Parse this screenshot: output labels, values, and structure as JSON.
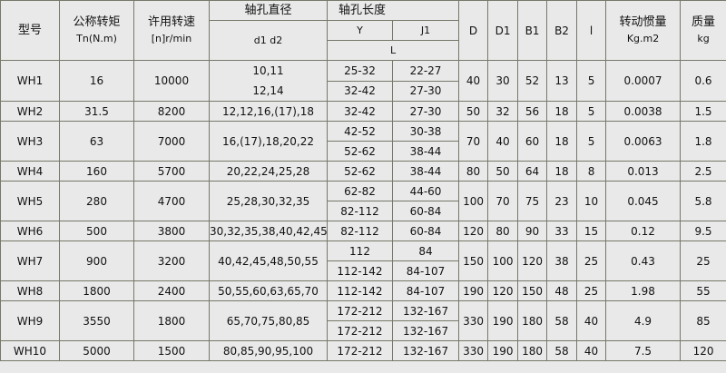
{
  "header": {
    "model": "型号",
    "torque": "公称转矩",
    "torque_unit": "Tn(N.m)",
    "speed": "许用转速",
    "speed_unit": "[n]r/min",
    "bore_diameter": "轴孔直径",
    "bore_diameter_sub": "d1 d2",
    "bore_length": "轴孔长度",
    "y": "Y",
    "j1": "J1",
    "l_len": "L",
    "d": "D",
    "d1": "D1",
    "b1": "B1",
    "b2": "B2",
    "l": "l",
    "inertia": "转动惯量",
    "inertia_unit": "Kg.m2",
    "mass": "质量",
    "mass_unit": "kg"
  },
  "rows": [
    {
      "model": "WH1",
      "torque": "16",
      "speed": "10000",
      "bore": [
        "10,11",
        "12,14"
      ],
      "lengths": [
        [
          "25-32",
          "22-27"
        ],
        [
          "32-42",
          "27-30"
        ]
      ],
      "D": "40",
      "D1": "30",
      "B1": "52",
      "B2": "13",
      "l": "5",
      "inertia": "0.0007",
      "mass": "0.6"
    },
    {
      "model": "WH2",
      "torque": "31.5",
      "speed": "8200",
      "bore": [
        "12,12,16,(17),18"
      ],
      "lengths": [
        [
          "32-42",
          "27-30"
        ]
      ],
      "D": "50",
      "D1": "32",
      "B1": "56",
      "B2": "18",
      "l": "5",
      "inertia": "0.0038",
      "mass": "1.5"
    },
    {
      "model": "WH3",
      "torque": "63",
      "speed": "7000",
      "bore": [
        "16,(17),18,20,22"
      ],
      "lengths": [
        [
          "42-52",
          "30-38"
        ],
        [
          "52-62",
          "38-44"
        ]
      ],
      "D": "70",
      "D1": "40",
      "B1": "60",
      "B2": "18",
      "l": "5",
      "inertia": "0.0063",
      "mass": "1.8"
    },
    {
      "model": "WH4",
      "torque": "160",
      "speed": "5700",
      "bore": [
        "20,22,24,25,28"
      ],
      "lengths": [
        [
          "52-62",
          "38-44"
        ]
      ],
      "D": "80",
      "D1": "50",
      "B1": "64",
      "B2": "18",
      "l": "8",
      "inertia": "0.013",
      "mass": "2.5"
    },
    {
      "model": "WH5",
      "torque": "280",
      "speed": "4700",
      "bore": [
        "25,28,30,32,35"
      ],
      "lengths": [
        [
          "62-82",
          "44-60"
        ],
        [
          "82-112",
          "60-84"
        ]
      ],
      "D": "100",
      "D1": "70",
      "B1": "75",
      "B2": "23",
      "l": "10",
      "inertia": "0.045",
      "mass": "5.8"
    },
    {
      "model": "WH6",
      "torque": "500",
      "speed": "3800",
      "bore": [
        "30,32,35,38,40,42,45"
      ],
      "lengths": [
        [
          "82-112",
          "60-84"
        ]
      ],
      "D": "120",
      "D1": "80",
      "B1": "90",
      "B2": "33",
      "l": "15",
      "inertia": "0.12",
      "mass": "9.5"
    },
    {
      "model": "WH7",
      "torque": "900",
      "speed": "3200",
      "bore": [
        "40,42,45,48,50,55"
      ],
      "lengths": [
        [
          "112",
          "84"
        ],
        [
          "112-142",
          "84-107"
        ]
      ],
      "D": "150",
      "D1": "100",
      "B1": "120",
      "B2": "38",
      "l": "25",
      "inertia": "0.43",
      "mass": "25"
    },
    {
      "model": "WH8",
      "torque": "1800",
      "speed": "2400",
      "bore": [
        "50,55,60,63,65,70"
      ],
      "lengths": [
        [
          "112-142",
          "84-107"
        ]
      ],
      "D": "190",
      "D1": "120",
      "B1": "150",
      "B2": "48",
      "l": "25",
      "inertia": "1.98",
      "mass": "55"
    },
    {
      "model": "WH9",
      "torque": "3550",
      "speed": "1800",
      "bore": [
        "65,70,75,80,85"
      ],
      "lengths": [
        [
          "172-212",
          "132-167"
        ],
        [
          "172-212",
          "132-167"
        ]
      ],
      "D": "330",
      "D1": "190",
      "B1": "180",
      "B2": "58",
      "l": "40",
      "inertia": "4.9",
      "mass": "85"
    },
    {
      "model": "WH10",
      "torque": "5000",
      "speed": "1500",
      "bore": [
        "80,85,90,95,100"
      ],
      "lengths": [
        [
          "172-212",
          "132-167"
        ]
      ],
      "D": "330",
      "D1": "190",
      "B1": "180",
      "B2": "58",
      "l": "40",
      "inertia": "7.5",
      "mass": "120"
    }
  ]
}
